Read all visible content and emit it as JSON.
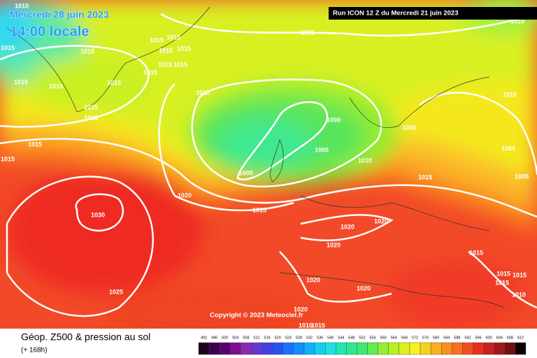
{
  "header": {
    "date": "Mercredi 28 juin 2023",
    "time": "14:00 locale",
    "run": "Run ICON 12 Z du Mercredi 21 juin 2023"
  },
  "copyright": "Copyright © 2023 Meteociel.fr",
  "footer": {
    "title": "Géop. Z500 & pression au sol",
    "lead": "(+ 168h)"
  },
  "isobar_labels": [
    1010,
    1015,
    1015,
    1015,
    1015,
    1015,
    1015,
    1015,
    1015,
    1015,
    1015,
    1015,
    1015,
    1015,
    1015,
    1015,
    1015,
    1015,
    1010,
    1000,
    1005,
    1000,
    1010,
    1005,
    1015,
    1020,
    1015,
    1030,
    1025,
    1020,
    1020,
    1020,
    1020,
    1020,
    1020,
    1015,
    1010,
    1010,
    1005,
    1005,
    1010,
    1015,
    1015,
    1015,
    1015,
    1010
  ],
  "scale": {
    "labels": [
      492,
      496,
      500,
      504,
      508,
      512,
      516,
      520,
      524,
      528,
      532,
      536,
      540,
      544,
      548,
      552,
      556,
      560,
      564,
      568,
      572,
      576,
      580,
      584,
      588,
      592,
      596,
      600,
      604,
      608,
      612
    ],
    "colors": [
      "#200020",
      "#3c0050",
      "#5a0070",
      "#7a1090",
      "#8c28b4",
      "#6438d0",
      "#4040e0",
      "#2a50f0",
      "#1a70ff",
      "#1090ff",
      "#10b0ff",
      "#10d0f0",
      "#20e0e0",
      "#20e8b0",
      "#30e890",
      "#40e870",
      "#60ec50",
      "#90f030",
      "#b8f020",
      "#e0f020",
      "#f8f020",
      "#f8d020",
      "#f8b020",
      "#f89020",
      "#f87020",
      "#f05020",
      "#e83020",
      "#c82020",
      "#a01818",
      "#701010",
      "#100000"
    ]
  }
}
